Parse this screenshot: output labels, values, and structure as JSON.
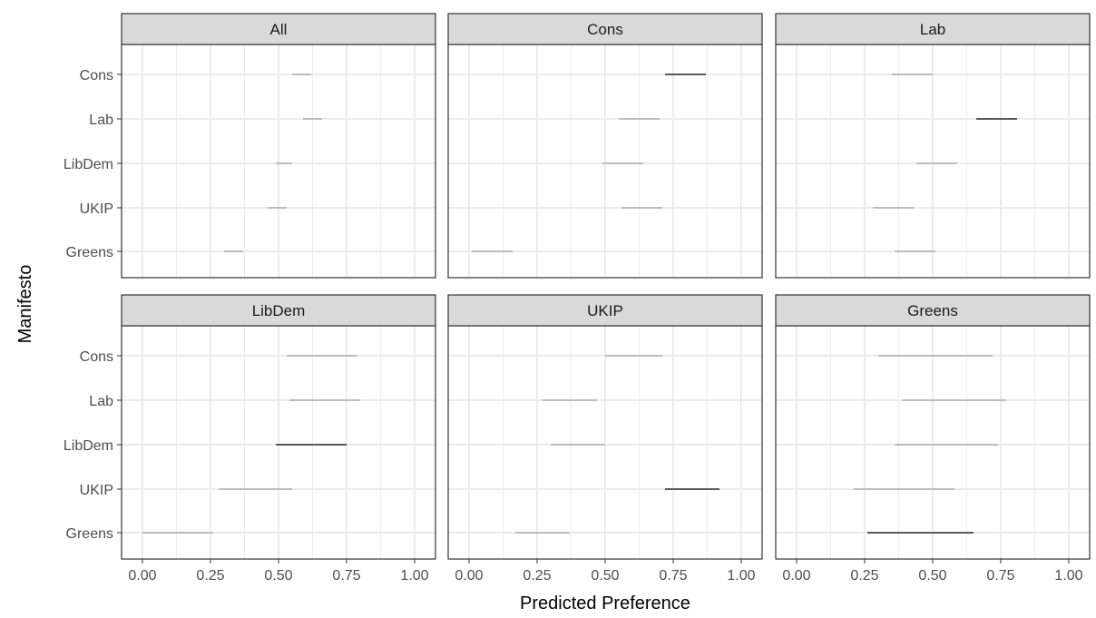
{
  "chart_data": {
    "type": "interval",
    "xlabel": "Predicted Preference",
    "ylabel": "Manifesto",
    "xlim": [
      0,
      1
    ],
    "x_ticks": [
      "0.00",
      "0.25",
      "0.50",
      "0.75",
      "1.00"
    ],
    "categories": [
      "Cons",
      "Lab",
      "LibDem",
      "UKIP",
      "Greens"
    ],
    "grid": true,
    "colors": {
      "highlight": "#000000",
      "other": "#8c8c8c",
      "strip": "#d9d9d9",
      "grid": "#ebebeb",
      "border": "#333333"
    },
    "panels": [
      {
        "name": "All",
        "intervals": [
          {
            "category": "Cons",
            "low": 0.55,
            "high": 0.62,
            "highlight": false
          },
          {
            "category": "Lab",
            "low": 0.59,
            "high": 0.66,
            "highlight": false
          },
          {
            "category": "LibDem",
            "low": 0.49,
            "high": 0.55,
            "highlight": false
          },
          {
            "category": "UKIP",
            "low": 0.46,
            "high": 0.53,
            "highlight": false
          },
          {
            "category": "Greens",
            "low": 0.3,
            "high": 0.37,
            "highlight": false
          }
        ]
      },
      {
        "name": "Cons",
        "intervals": [
          {
            "category": "Cons",
            "low": 0.72,
            "high": 0.87,
            "highlight": true
          },
          {
            "category": "Lab",
            "low": 0.55,
            "high": 0.7,
            "highlight": false
          },
          {
            "category": "LibDem",
            "low": 0.49,
            "high": 0.64,
            "highlight": false
          },
          {
            "category": "UKIP",
            "low": 0.56,
            "high": 0.71,
            "highlight": false
          },
          {
            "category": "Greens",
            "low": 0.01,
            "high": 0.16,
            "highlight": false
          }
        ]
      },
      {
        "name": "Lab",
        "intervals": [
          {
            "category": "Cons",
            "low": 0.35,
            "high": 0.5,
            "highlight": false
          },
          {
            "category": "Lab",
            "low": 0.66,
            "high": 0.81,
            "highlight": true
          },
          {
            "category": "LibDem",
            "low": 0.44,
            "high": 0.59,
            "highlight": false
          },
          {
            "category": "UKIP",
            "low": 0.28,
            "high": 0.43,
            "highlight": false
          },
          {
            "category": "Greens",
            "low": 0.36,
            "high": 0.51,
            "highlight": false
          }
        ]
      },
      {
        "name": "LibDem",
        "intervals": [
          {
            "category": "Cons",
            "low": 0.53,
            "high": 0.79,
            "highlight": false
          },
          {
            "category": "Lab",
            "low": 0.54,
            "high": 0.8,
            "highlight": false
          },
          {
            "category": "LibDem",
            "low": 0.49,
            "high": 0.75,
            "highlight": true
          },
          {
            "category": "UKIP",
            "low": 0.28,
            "high": 0.55,
            "highlight": false
          },
          {
            "category": "Greens",
            "low": 0.0,
            "high": 0.26,
            "highlight": false
          }
        ]
      },
      {
        "name": "UKIP",
        "intervals": [
          {
            "category": "Cons",
            "low": 0.5,
            "high": 0.71,
            "highlight": false
          },
          {
            "category": "Lab",
            "low": 0.27,
            "high": 0.47,
            "highlight": false
          },
          {
            "category": "LibDem",
            "low": 0.3,
            "high": 0.5,
            "highlight": false
          },
          {
            "category": "UKIP",
            "low": 0.72,
            "high": 0.92,
            "highlight": true
          },
          {
            "category": "Greens",
            "low": 0.17,
            "high": 0.37,
            "highlight": false
          }
        ]
      },
      {
        "name": "Greens",
        "intervals": [
          {
            "category": "Cons",
            "low": 0.3,
            "high": 0.72,
            "highlight": false
          },
          {
            "category": "Lab",
            "low": 0.39,
            "high": 0.77,
            "highlight": false
          },
          {
            "category": "LibDem",
            "low": 0.36,
            "high": 0.74,
            "highlight": false
          },
          {
            "category": "UKIP",
            "low": 0.21,
            "high": 0.58,
            "highlight": false
          },
          {
            "category": "Greens",
            "low": 0.26,
            "high": 0.65,
            "highlight": true
          }
        ]
      }
    ]
  }
}
